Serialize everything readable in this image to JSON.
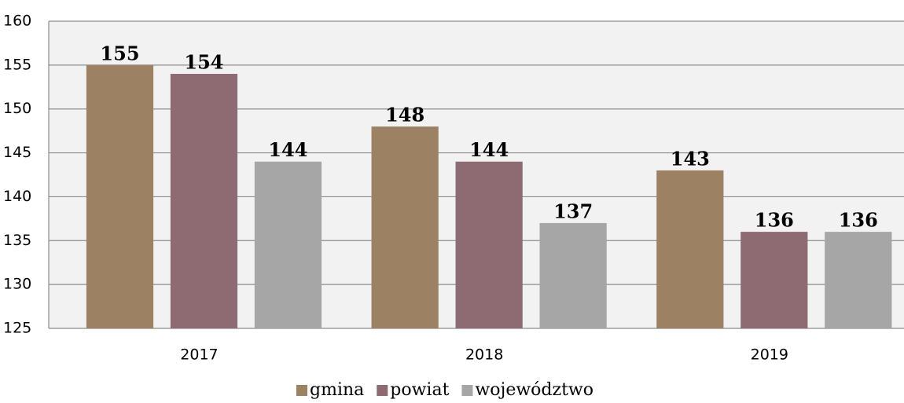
{
  "chart_data": {
    "type": "bar",
    "categories": [
      "2017",
      "2018",
      "2019"
    ],
    "series": [
      {
        "name": "gmina",
        "color": "#9c8262",
        "values": [
          155,
          148,
          143
        ]
      },
      {
        "name": "powiat",
        "color": "#8e6a73",
        "values": [
          154,
          144,
          136
        ]
      },
      {
        "name": "województwo",
        "color": "#a6a6a6",
        "values": [
          144,
          137,
          136
        ]
      }
    ],
    "ylim": [
      125,
      160
    ],
    "yticks": [
      125,
      130,
      135,
      140,
      145,
      150,
      155,
      160
    ],
    "grid": true,
    "legend": "bottom"
  }
}
